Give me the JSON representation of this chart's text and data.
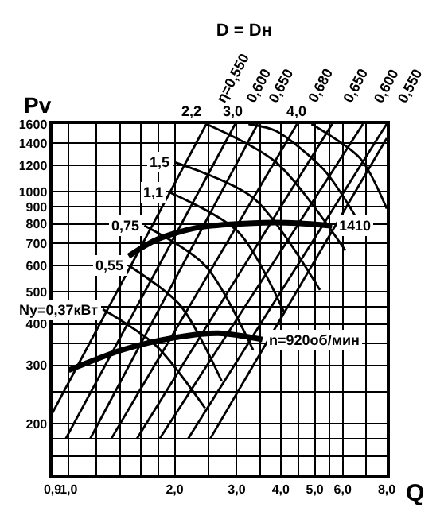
{
  "chart_data": {
    "type": "line",
    "title": "D = Dн",
    "xlabel": "Q",
    "ylabel": "Pv",
    "log": "xy",
    "grid": true,
    "legend": false,
    "line_style": "solid",
    "xlim": [
      0.9,
      8.0
    ],
    "ylim": [
      140,
      1600
    ],
    "xticks": [
      {
        "value": 0.9,
        "label": "0,9"
      },
      {
        "value": 1.0,
        "label": "1,0"
      },
      {
        "value": 1.2,
        "label": null
      },
      {
        "value": 1.4,
        "label": null
      },
      {
        "value": 1.6,
        "label": null
      },
      {
        "value": 1.8,
        "label": null
      },
      {
        "value": 2.0,
        "label": "2,0"
      },
      {
        "value": 2.5,
        "label": null
      },
      {
        "value": 3.0,
        "label": "3,0"
      },
      {
        "value": 3.5,
        "label": null
      },
      {
        "value": 4.0,
        "label": "4,0"
      },
      {
        "value": 4.5,
        "label": null
      },
      {
        "value": 5.0,
        "label": "5,0"
      },
      {
        "value": 5.5,
        "label": null
      },
      {
        "value": 6.0,
        "label": "6,0"
      },
      {
        "value": 7.0,
        "label": null
      },
      {
        "value": 8.0,
        "label": "8,0"
      }
    ],
    "yticks": [
      {
        "value": 160,
        "label": null
      },
      {
        "value": 180,
        "label": null
      },
      200,
      {
        "value": 250,
        "label": null
      },
      300,
      {
        "value": 350,
        "label": null
      },
      400,
      {
        "value": 450,
        "label": null
      },
      500,
      600,
      700,
      800,
      900,
      1000,
      1200,
      1400,
      1600
    ],
    "series": [
      {
        "name": "1410",
        "color": "#000000",
        "x": [
          1.48,
          1.77,
          2.32,
          3.34,
          4.45,
          5.6
        ],
        "values": [
          640,
          716,
          780,
          805,
          805,
          790
        ]
      },
      {
        "name": "n=920об/мин",
        "color": "#000000",
        "x": [
          1.0,
          1.42,
          1.98,
          2.66,
          3.55
        ],
        "values": [
          290,
          334,
          363,
          375,
          359
        ]
      },
      {
        "name": "η=0,550",
        "color": "#000000",
        "x": [
          0.9,
          2.46
        ],
        "values": [
          216,
          1600
        ]
      },
      {
        "name": "0,600",
        "color": "#000000",
        "x": [
          0.98,
          2.97
        ],
        "values": [
          180,
          1600
        ]
      },
      {
        "name": "0,650",
        "color": "#000000",
        "x": [
          1.15,
          3.44
        ],
        "values": [
          180,
          1600
        ]
      },
      {
        "name": "0,680",
        "color": "#000000",
        "x": [
          1.32,
          4.45
        ],
        "values": [
          180,
          1600
        ]
      },
      {
        "name": "0,650",
        "color": "#000000",
        "x": [
          1.56,
          5.6
        ],
        "values": [
          180,
          1600
        ]
      },
      {
        "name": "0,600",
        "color": "#000000",
        "x": [
          1.81,
          6.85
        ],
        "values": [
          180,
          1600
        ]
      },
      {
        "name": "0,550",
        "color": "#000000",
        "x": [
          2.18,
          8.0
        ],
        "values": [
          180,
          1600
        ]
      },
      {
        "color": "#000000",
        "x": [
          2.52,
          8.0
        ],
        "values": [
          180,
          1450
        ]
      },
      {
        "name": "Ny=0,37кВт",
        "color": "#000000",
        "x": [
          1.25,
          1.77,
          2.44
        ],
        "values": [
          443,
          344,
          223
        ]
      },
      {
        "name": "0,55",
        "color": "#000000",
        "x": [
          1.48,
          2.07,
          2.72
        ],
        "values": [
          600,
          456,
          269
        ]
      },
      {
        "name": "0,75",
        "color": "#000000",
        "x": [
          1.64,
          2.44,
          3.34
        ],
        "values": [
          791,
          600,
          334
        ]
      },
      {
        "name": "1,1",
        "color": "#000000",
        "x": [
          1.92,
          3.03,
          4.09
        ],
        "values": [
          1000,
          757,
          434
        ]
      },
      {
        "name": "1,5",
        "color": "#000000",
        "x": [
          2.0,
          3.34,
          5.17
        ],
        "values": [
          1227,
          959,
          506
        ]
      },
      {
        "name": "2,2",
        "color": "#000000",
        "x": [
          2.46,
          3.88,
          6.11
        ],
        "values": [
          1600,
          1227,
          665
        ]
      },
      {
        "name": "3,0",
        "color": "#000000",
        "x": [
          3.24,
          3.88,
          5.3,
          6.54
        ],
        "values": [
          1600,
          1524,
          1166,
          840
        ]
      },
      {
        "name": "4,0",
        "color": "#000000",
        "x": [
          4.89,
          6.73,
          8.0
        ],
        "values": [
          1600,
          1260,
          890
        ]
      }
    ]
  }
}
